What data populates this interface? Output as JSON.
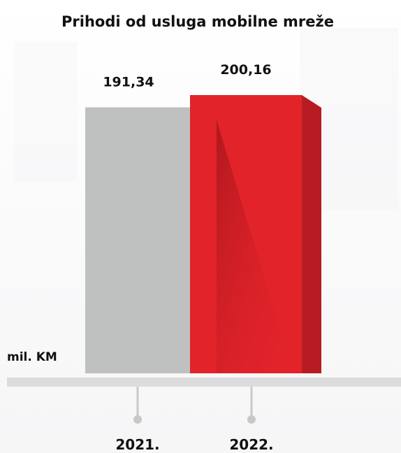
{
  "chart_data": {
    "type": "bar",
    "title": "Prihodi od usluga mobilne mreže",
    "unit_label": "mil. KM",
    "categories": [
      "2021.",
      "2022."
    ],
    "values": [
      191.34,
      200.16
    ],
    "value_labels": [
      "191,34",
      "200,16"
    ],
    "colors": [
      "#bfc0c0",
      "#e2232a"
    ],
    "side_colors": [
      "#9e9f9f",
      "#b81c23"
    ],
    "ylim": [
      0,
      200.16
    ],
    "grid": false,
    "legend": "none"
  }
}
